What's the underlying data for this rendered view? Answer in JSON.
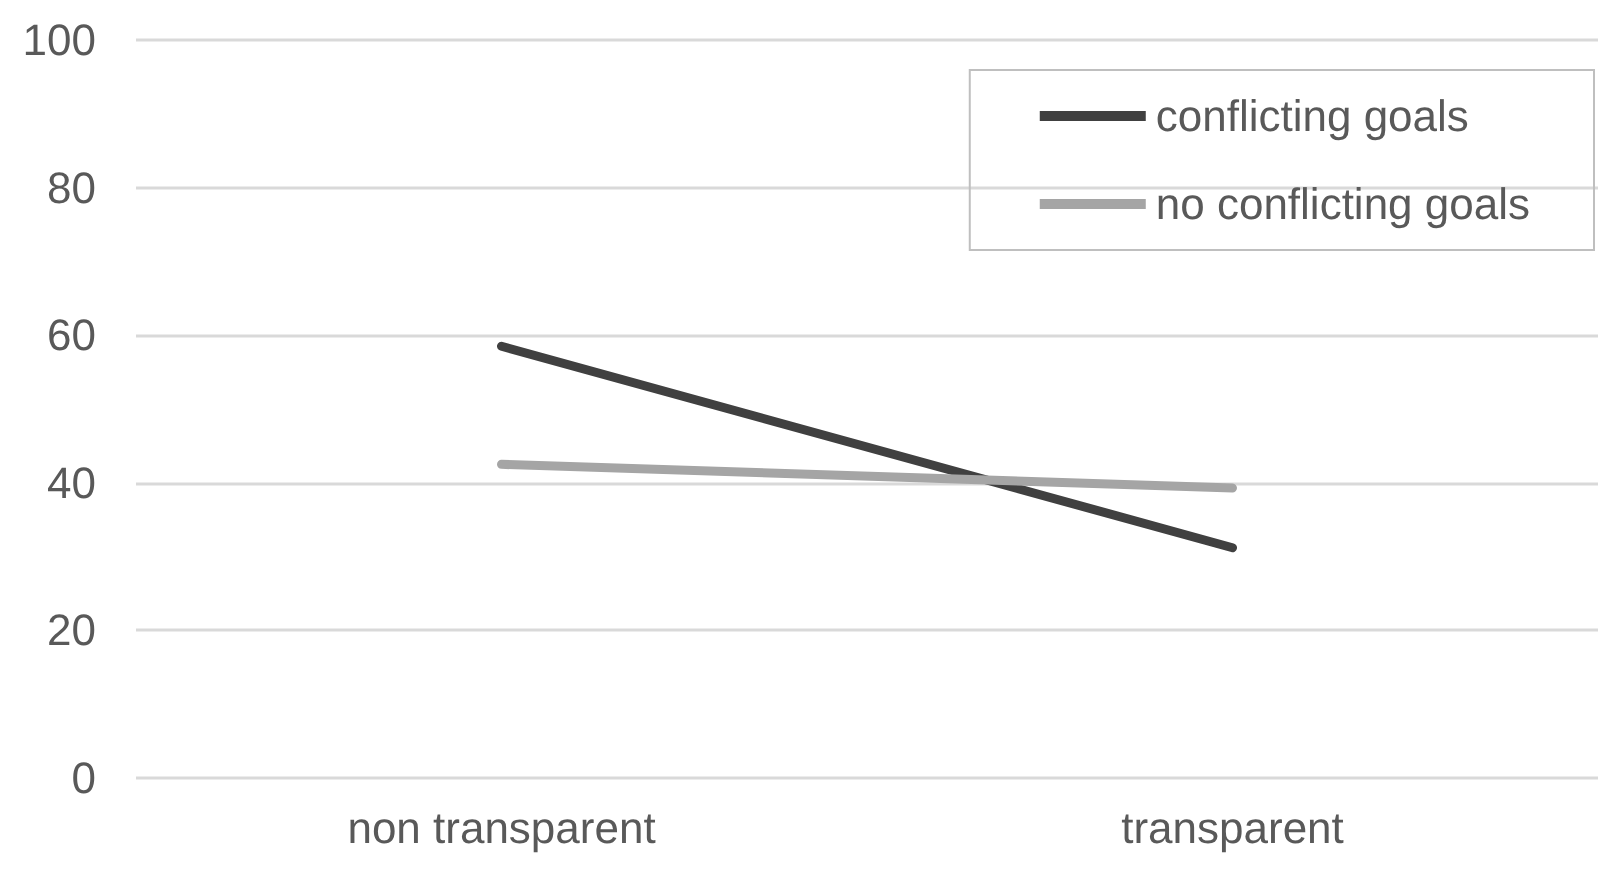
{
  "chart_data": {
    "type": "line",
    "categories": [
      "non transparent",
      "transparent"
    ],
    "series": [
      {
        "name": "conflicting goals",
        "color": "#404040",
        "values": [
          58.5,
          31.2
        ]
      },
      {
        "name": "no conflicting goals",
        "color": "#a5a5a5",
        "values": [
          42.5,
          39.3
        ]
      }
    ],
    "ylim": [
      0,
      100
    ],
    "yticks": [
      0,
      20,
      40,
      60,
      80,
      100
    ],
    "grid": "y",
    "legend": "top right",
    "marker": "none",
    "line_style": "solid"
  }
}
